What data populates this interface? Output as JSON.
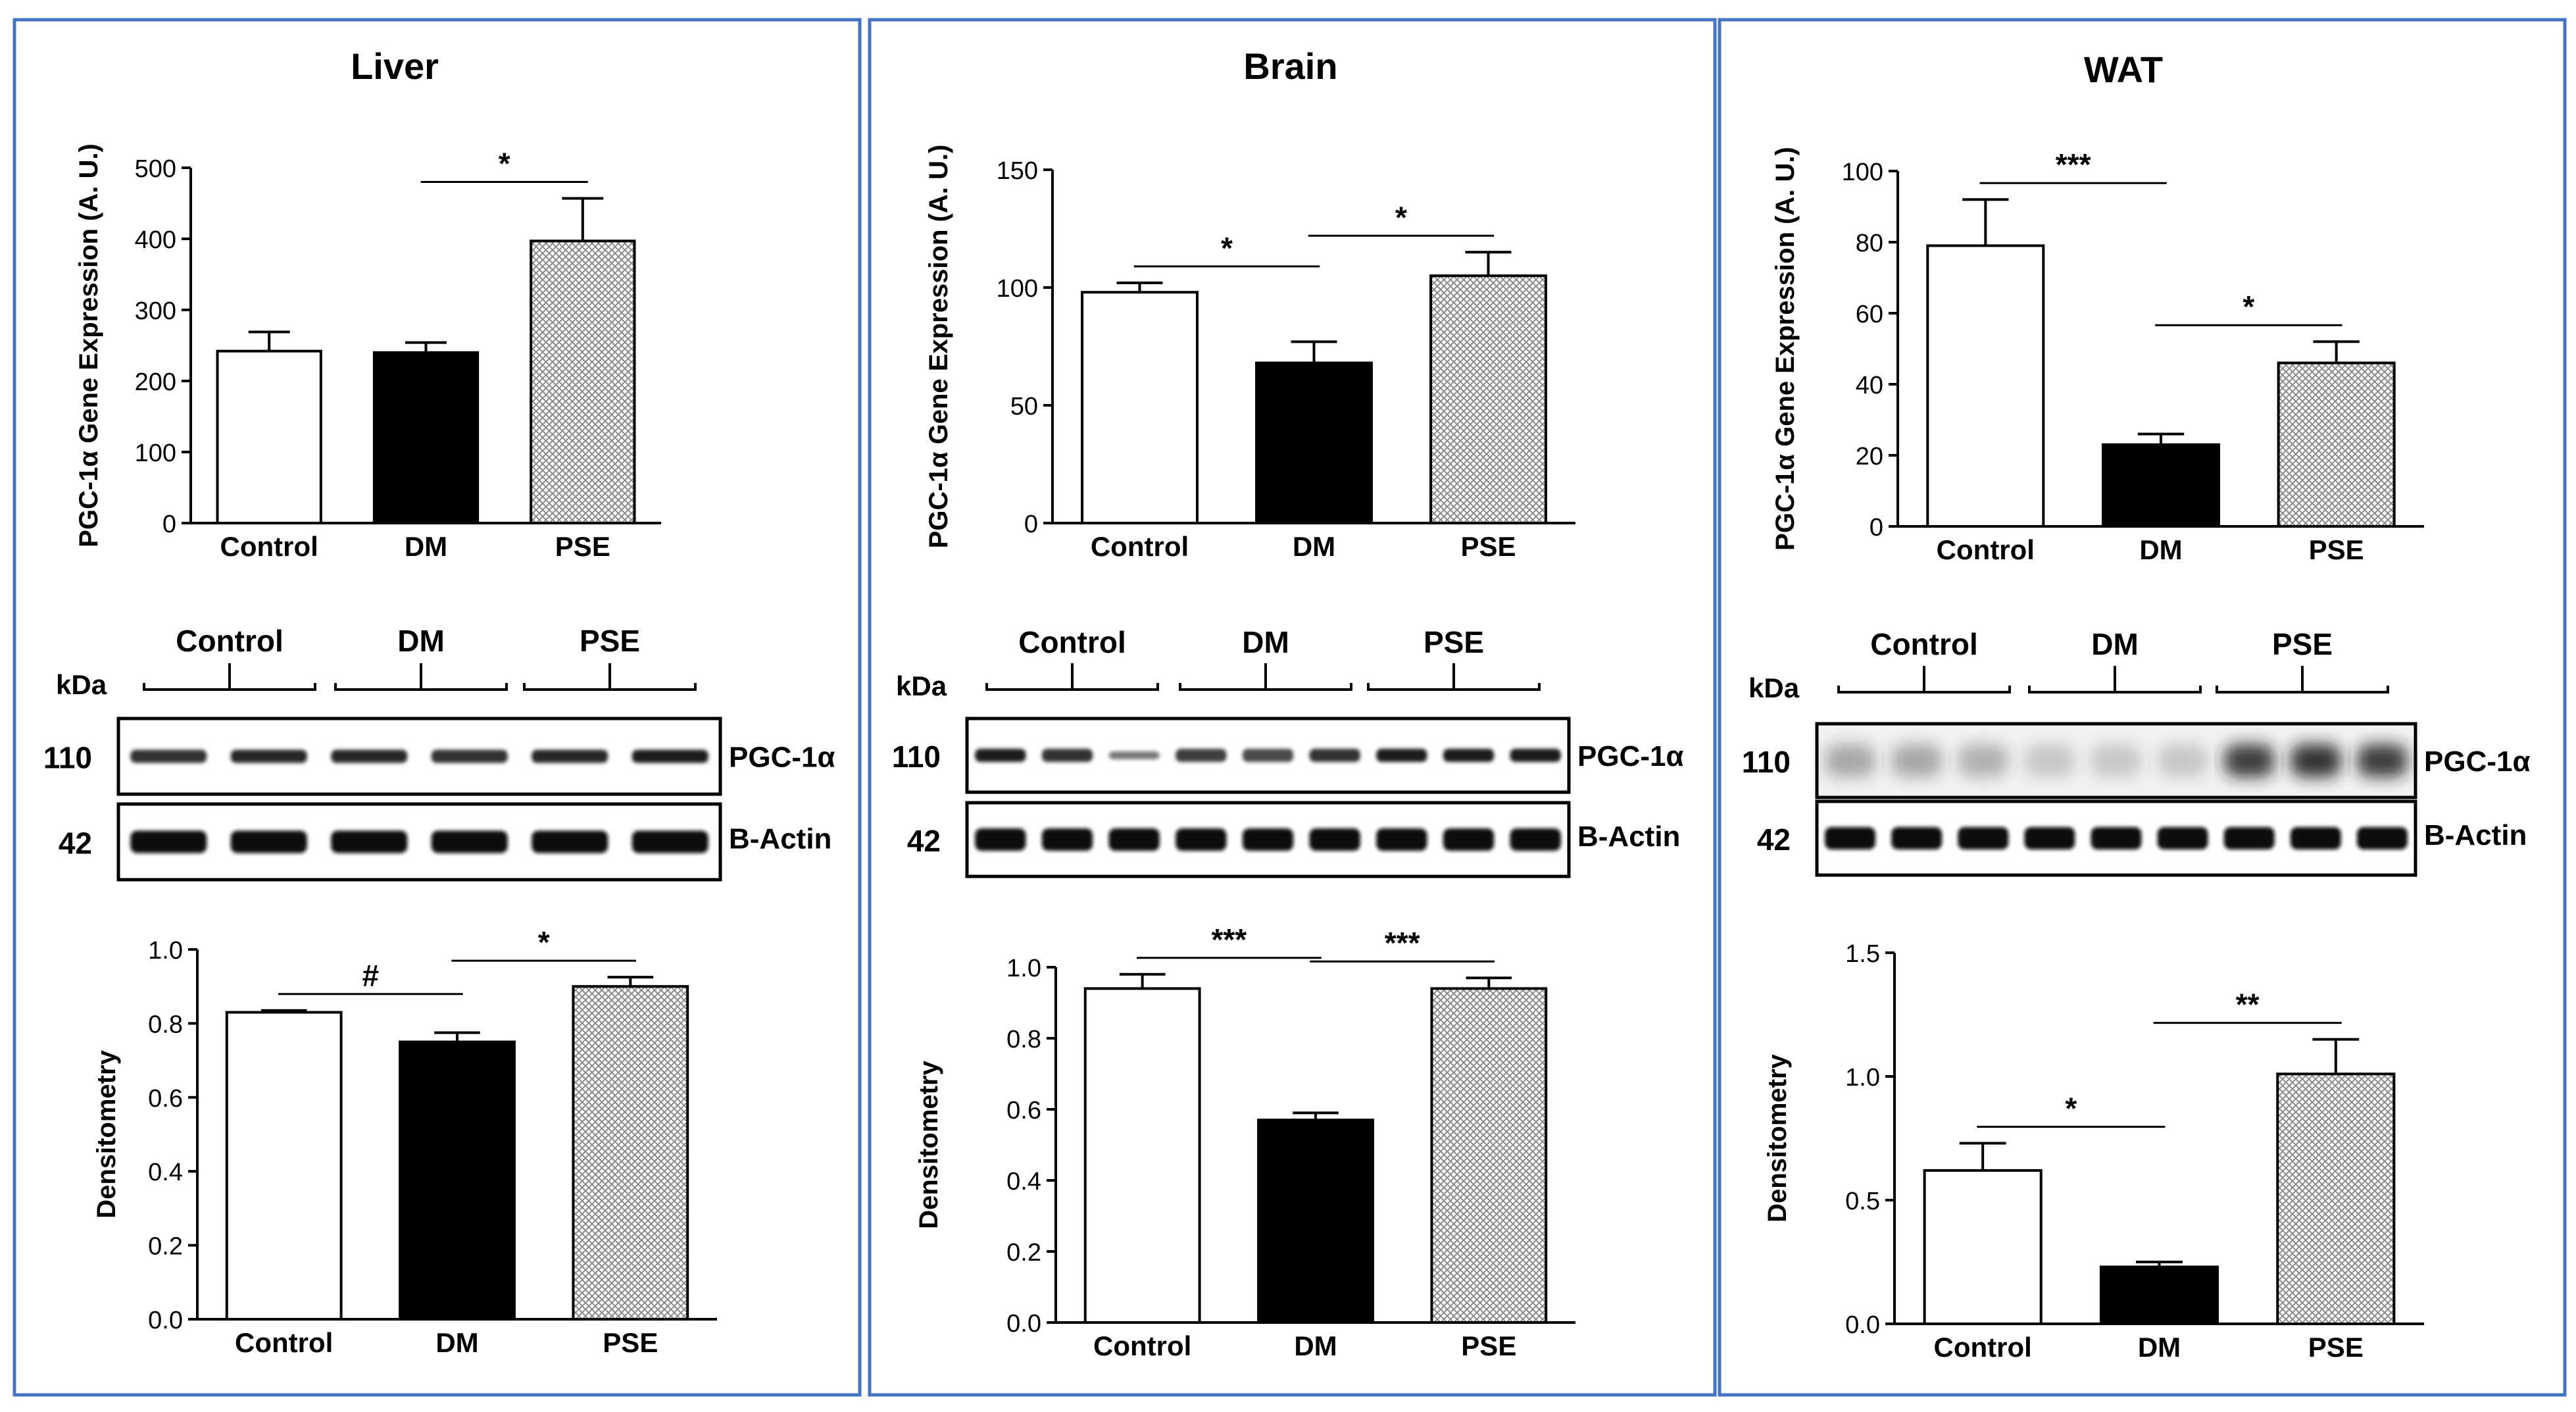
{
  "colors": {
    "panel_border": "#4472c4",
    "control_fill": "#ffffff",
    "dm_fill": "#000000",
    "pse_pattern": "#8a8a8a",
    "axis": "#000000",
    "band": "#1a1a1a"
  },
  "blot": {
    "kda_label": "kDa",
    "target_protein": "PGC-1α",
    "loading_control": "B-Actin",
    "target_kda": "110",
    "loading_kda": "42"
  },
  "chart_data": [
    {
      "panel": "Liver",
      "title": "Liver",
      "type": "bar",
      "ylabel": "PGC-1α Gene Expression (A. U.)",
      "xlabel": "",
      "categories": [
        "Control",
        "DM",
        "PSE"
      ],
      "values": [
        242,
        240,
        397
      ],
      "errors": [
        27,
        14,
        60
      ],
      "ylim": [
        0,
        500
      ],
      "yticks": [
        "0",
        "100",
        "200",
        "300",
        "400",
        "500"
      ],
      "significance": [
        {
          "from": 1,
          "to": 2,
          "label": "*"
        }
      ]
    },
    {
      "panel": "Liver",
      "type": "bar",
      "ylabel": "Densitometry",
      "xlabel": "",
      "categories": [
        "Control",
        "DM",
        "PSE"
      ],
      "values": [
        0.83,
        0.75,
        0.9
      ],
      "errors": [
        0.005,
        0.025,
        0.025
      ],
      "ylim": [
        0,
        1.0
      ],
      "yticks": [
        "0.0",
        "0.2",
        "0.4",
        "0.6",
        "0.8",
        "1.0"
      ],
      "significance": [
        {
          "from": 0,
          "to": 1,
          "label": "#"
        },
        {
          "from": 1,
          "to": 2,
          "label": "*"
        }
      ]
    },
    {
      "panel": "Brain",
      "title": "Brain",
      "type": "bar",
      "ylabel": "PGC-1α Gene Expression (A. U.)",
      "xlabel": "",
      "categories": [
        "Control",
        "DM",
        "PSE"
      ],
      "values": [
        98,
        68,
        105
      ],
      "errors": [
        4,
        9,
        10
      ],
      "ylim": [
        0,
        150
      ],
      "yticks": [
        "0",
        "50",
        "100",
        "150"
      ],
      "significance": [
        {
          "from": 0,
          "to": 1,
          "label": "*"
        },
        {
          "from": 1,
          "to": 2,
          "label": "*"
        }
      ]
    },
    {
      "panel": "Brain",
      "type": "bar",
      "ylabel": "Densitometry",
      "xlabel": "",
      "categories": [
        "Control",
        "DM",
        "PSE"
      ],
      "values": [
        0.94,
        0.57,
        0.94
      ],
      "errors": [
        0.04,
        0.02,
        0.03
      ],
      "ylim": [
        0,
        1.0
      ],
      "yticks": [
        "0.0",
        "0.2",
        "0.4",
        "0.6",
        "0.8",
        "1.0"
      ],
      "significance": [
        {
          "from": 0,
          "to": 1,
          "label": "***"
        },
        {
          "from": 1,
          "to": 2,
          "label": "***"
        }
      ]
    },
    {
      "panel": "WAT",
      "title": "WAT",
      "type": "bar",
      "ylabel": "PGC-1α Gene Expression (A. U.)",
      "xlabel": "",
      "categories": [
        "Control",
        "DM",
        "PSE"
      ],
      "values": [
        79,
        23,
        46
      ],
      "errors": [
        13,
        3,
        6
      ],
      "ylim": [
        0,
        100
      ],
      "yticks": [
        "0",
        "20",
        "40",
        "60",
        "80",
        "100"
      ],
      "significance": [
        {
          "from": 0,
          "to": 1,
          "label": "***"
        },
        {
          "from": 1,
          "to": 2,
          "label": "*"
        }
      ]
    },
    {
      "panel": "WAT",
      "type": "bar",
      "ylabel": "Densitometry",
      "xlabel": "",
      "categories": [
        "Control",
        "DM",
        "PSE"
      ],
      "values": [
        0.62,
        0.23,
        1.01
      ],
      "errors": [
        0.11,
        0.02,
        0.14
      ],
      "ylim": [
        0,
        1.5
      ],
      "yticks": [
        "0.0",
        "0.5",
        "1.0",
        "1.5"
      ],
      "significance": [
        {
          "from": 0,
          "to": 1,
          "label": "*"
        },
        {
          "from": 1,
          "to": 2,
          "label": "**"
        }
      ]
    }
  ]
}
